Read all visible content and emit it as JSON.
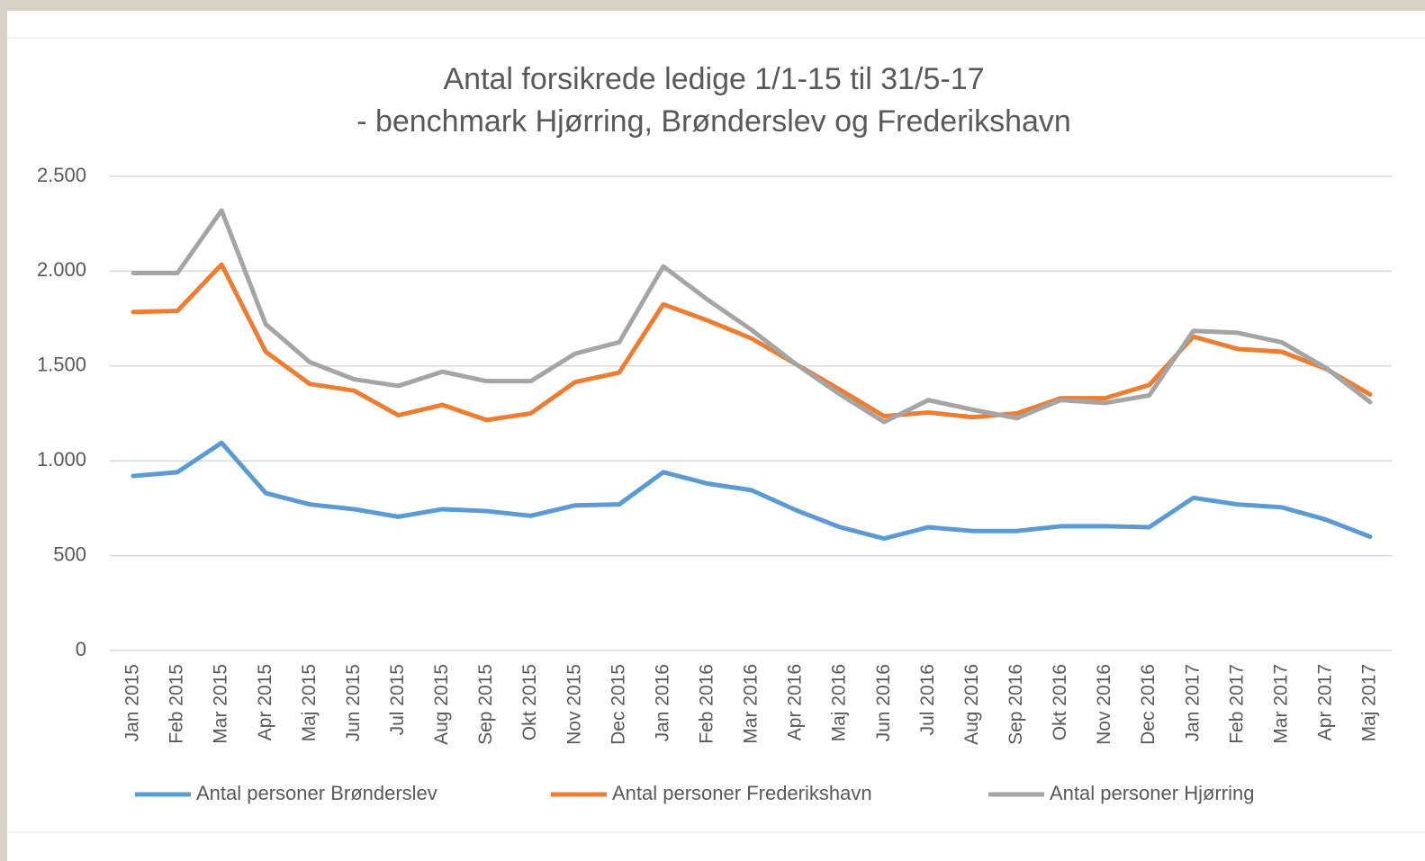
{
  "chart_data": {
    "type": "line",
    "title": "Antal forsikrede ledige 1/1-15 til 31/5-17",
    "subtitle": "- benchmark Hjørring, Brønderslev og Frederikshavn",
    "categories": [
      "Jan 2015",
      "Feb 2015",
      "Mar 2015",
      "Apr 2015",
      "Maj 2015",
      "Jun 2015",
      "Jul 2015",
      "Aug 2015",
      "Sep 2015",
      "Okt 2015",
      "Nov 2015",
      "Dec 2015",
      "Jan 2016",
      "Feb 2016",
      "Mar 2016",
      "Apr 2016",
      "Maj 2016",
      "Jun 2016",
      "Jul 2016",
      "Aug 2016",
      "Sep 2016",
      "Okt 2016",
      "Nov 2016",
      "Dec 2016",
      "Jan 2017",
      "Feb 2017",
      "Mar 2017",
      "Apr 2017",
      "Maj 2017"
    ],
    "series": [
      {
        "name": "Antal personer Brønderslev",
        "color": "#5b9bd5",
        "values": [
          920,
          940,
          1095,
          830,
          770,
          745,
          705,
          745,
          735,
          710,
          765,
          770,
          940,
          880,
          845,
          740,
          650,
          590,
          650,
          630,
          630,
          655,
          655,
          650,
          805,
          770,
          755,
          690,
          600
        ]
      },
      {
        "name": "Antal personer Frederikshavn",
        "color": "#ed7d31",
        "values": [
          1785,
          1790,
          2035,
          1575,
          1405,
          1370,
          1240,
          1295,
          1215,
          1250,
          1415,
          1465,
          1825,
          1740,
          1645,
          1510,
          1375,
          1235,
          1255,
          1230,
          1250,
          1330,
          1330,
          1400,
          1655,
          1590,
          1575,
          1485,
          1350
        ]
      },
      {
        "name": "Antal personer Hjørring",
        "color": "#a5a5a5",
        "values": [
          1990,
          1990,
          2320,
          1720,
          1520,
          1430,
          1395,
          1470,
          1420,
          1420,
          1565,
          1625,
          2025,
          1850,
          1690,
          1510,
          1350,
          1205,
          1320,
          1270,
          1225,
          1320,
          1305,
          1345,
          1685,
          1675,
          1625,
          1490,
          1310
        ]
      }
    ],
    "ylim": [
      0,
      2500
    ],
    "yticks": [
      0,
      500,
      {
        "value": 1000,
        "label": "1.000"
      },
      {
        "value": 1500,
        "label": "1.500"
      },
      {
        "value": 2000,
        "label": "2.000"
      },
      {
        "value": 2500,
        "label": "2.500"
      }
    ],
    "grid": true,
    "legend": "bottom"
  }
}
